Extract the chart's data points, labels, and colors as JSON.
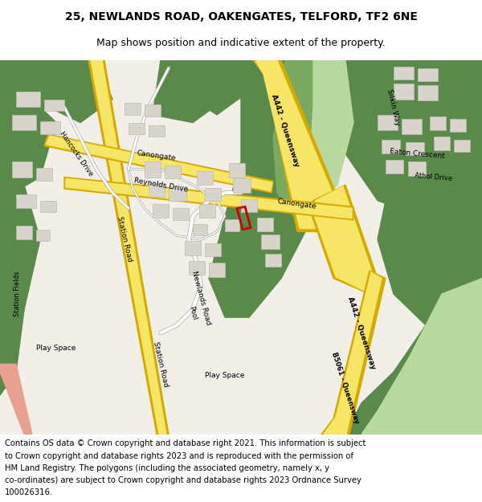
{
  "title": "25, NEWLANDS ROAD, OAKENGATES, TELFORD, TF2 6NE",
  "subtitle": "Map shows position and indicative extent of the property.",
  "copyright_lines": [
    "Contains OS data © Crown copyright and database right 2021. This information is subject",
    "to Crown copyright and database rights 2023 and is reproduced with the permission of",
    "HM Land Registry. The polygons (including the associated geometry, namely x, y",
    "co-ordinates) are subject to Crown copyright and database rights 2023 Ordnance Survey",
    "100026316."
  ],
  "title_fontsize": 10,
  "subtitle_fontsize": 9,
  "copyright_fontsize": 7.2,
  "map_bg": "#f2efe9",
  "road_yellow": "#f7e565",
  "road_yellow_border": "#d4a900",
  "green_dark": "#5a8a4a",
  "green_light": "#b8d8a0",
  "green_medium": "#7aaa60",
  "building_color": "#d8d4cc",
  "building_border": "#c0bbb0",
  "red_outline": "#cc0000",
  "road_salmon": "#e8a090",
  "text_color": "#000000",
  "fig_bg": "#ffffff"
}
